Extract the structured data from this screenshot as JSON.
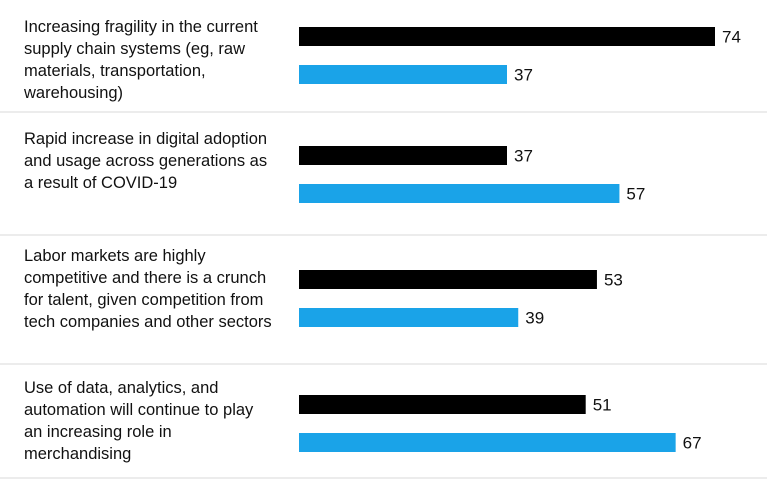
{
  "chart_data": {
    "type": "bar",
    "orientation": "horizontal",
    "categories": [
      "Increasing fragility in the current supply chain systems (eg, raw materials, transportation, warehousing)",
      "Rapid increase in digital adoption and usage across generations as a result of COVID-19",
      "Labor markets are highly competitive and there is a crunch for talent, given competition from tech companies and other sectors",
      "Use of data, analytics, and automation will continue to play an increasing role in merchandising"
    ],
    "series": [
      {
        "values": [
          74,
          37,
          53,
          51
        ]
      },
      {
        "values": [
          37,
          57,
          39,
          67
        ]
      }
    ],
    "xlim": [
      0,
      74
    ],
    "grid": false,
    "legend": "none",
    "colors": [
      "#000000",
      "#1aa3e8"
    ],
    "separator_color": "#d9d9d9"
  }
}
